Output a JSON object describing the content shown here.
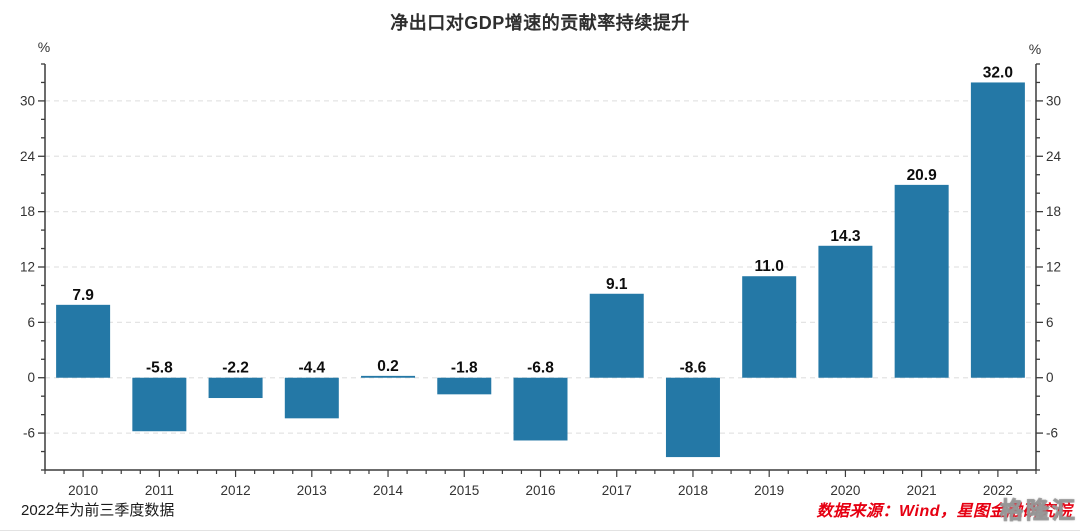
{
  "page": {
    "title": "净出口对GDP增速的贡献率持续提升"
  },
  "chart_data": {
    "type": "bar",
    "title": "净出口对GDP增速的贡献率持续提升",
    "categories": [
      "2010",
      "2011",
      "2012",
      "2013",
      "2014",
      "2015",
      "2016",
      "2017",
      "2018",
      "2019",
      "2020",
      "2021",
      "2022"
    ],
    "values": [
      7.9,
      -5.8,
      -2.2,
      -4.4,
      0.2,
      -1.8,
      -6.8,
      9.1,
      -8.6,
      11.0,
      14.3,
      20.9,
      32.0
    ],
    "value_labels": [
      "7.9",
      "-5.8",
      "-2.2",
      "-4.4",
      "0.2",
      "-1.8",
      "-6.8",
      "9.1",
      "-8.6",
      "11.0",
      "14.3",
      "20.9",
      "32.0"
    ],
    "xlabel": "",
    "ylabel": "%",
    "unit_label_left": "%",
    "unit_label_right": "%",
    "ylim": [
      -10,
      34
    ],
    "yticks_labeled": [
      -6,
      0,
      6,
      12,
      18,
      24,
      30
    ],
    "ytick_minor_step": 2,
    "xtick_minor_per_category": 4,
    "grid": "horizontal dashed lines at labeled y ticks",
    "legend_position": "none",
    "bar_color": "#2478a6"
  },
  "footer": {
    "footnote": "2022年为前三季度数据",
    "source": "数据来源：Wind，星图金融研究院",
    "watermark": "格隆汇"
  },
  "colors": {
    "bar": "#2478a6",
    "axis": "#3c3c3c",
    "grid": "#e4e4e4",
    "tick_label": "#333333",
    "value_label": "#0d0d0d",
    "title": "#2e2e2e",
    "source_text": "#e60012",
    "footnote_text": "#1a1a1a"
  }
}
